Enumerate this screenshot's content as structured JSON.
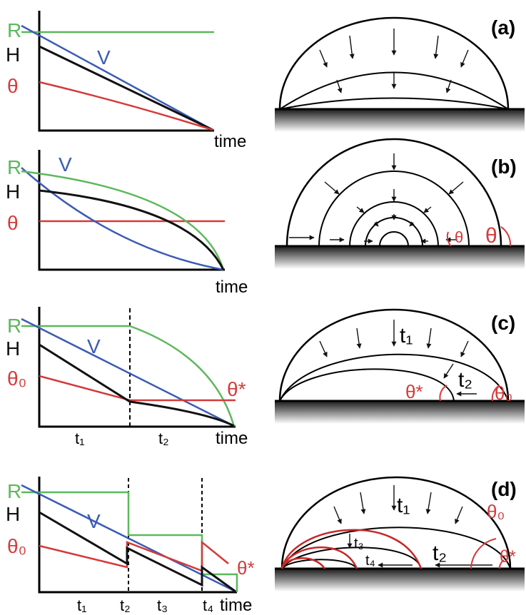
{
  "colors": {
    "R": "#5cb85c",
    "H": "#111111",
    "V": "#3b5bb5",
    "theta": "#d43a3a",
    "axis": "#000000"
  },
  "panels": [
    {
      "id": "a",
      "tag": "(a)",
      "y_labels": {
        "R": "R",
        "H": "H",
        "theta": "θ"
      },
      "curve_labels": {
        "V": "V"
      },
      "x_label": "time",
      "phase_labels": []
    },
    {
      "id": "b",
      "tag": "(b)",
      "y_labels": {
        "R": "R",
        "H": "H",
        "theta": "θ"
      },
      "curve_labels": {
        "V": "V"
      },
      "x_label": "time",
      "phase_labels": [],
      "drop_labels": {
        "theta_small": "θ",
        "theta_large": "θ"
      }
    },
    {
      "id": "c",
      "tag": "(c)",
      "y_labels": {
        "R": "R",
        "H": "H",
        "theta": "θ₀"
      },
      "curve_labels": {
        "V": "V",
        "theta_star": "θ*"
      },
      "x_label": "time",
      "phase_labels": [
        "t₁",
        "t₂"
      ],
      "drop_labels": {
        "t1": "t₁",
        "t2": "t₂",
        "theta_star": "θ*",
        "theta0": "θ₀"
      }
    },
    {
      "id": "d",
      "tag": "(d)",
      "y_labels": {
        "R": "R",
        "H": "H",
        "theta": "θ₀"
      },
      "curve_labels": {
        "V": "V",
        "theta_star": "θ*"
      },
      "x_label": "time",
      "phase_labels": [
        "t₁",
        "t₂",
        "t₃",
        "t₄"
      ],
      "drop_labels": {
        "t1": "t₁",
        "t2": "t₂",
        "t3": "t₃",
        "t4": "t₄",
        "theta0": "θ₀",
        "theta_star": "θ*"
      }
    }
  ]
}
